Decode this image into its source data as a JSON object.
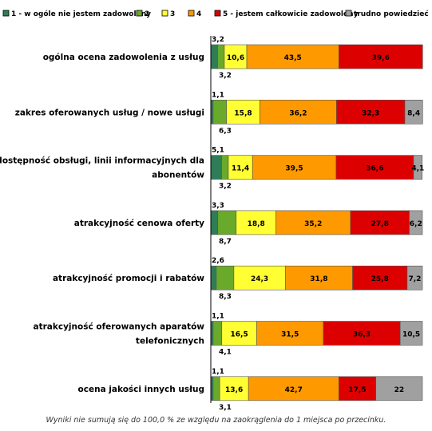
{
  "chart_data": {
    "type": "bar",
    "orientation": "horizontal",
    "stacked": true,
    "percent": true,
    "xlim": [
      0,
      100
    ],
    "legend_position": "top",
    "grid": false,
    "categories": [
      [
        "ogólna ocena zadowolenia z usług"
      ],
      [
        "zakres oferowanych usług / nowe usługi"
      ],
      [
        "dostępność obsługi, linii informacyjnych dla",
        "abonentów"
      ],
      [
        "atrakcyjność cenowa oferty"
      ],
      [
        "atrakcyjność promocji i rabatów"
      ],
      [
        "atrakcyjność oferowanych aparatów",
        "telefonicznych"
      ],
      [
        "ocena jakości innych usług"
      ]
    ],
    "series": [
      {
        "name": "1 - w ogóle nie jestem zadowolony",
        "color": "#2e7d57",
        "values": [
          3.2,
          1.1,
          5.1,
          3.3,
          2.6,
          1.1,
          1.1
        ]
      },
      {
        "name": "2",
        "color": "#6aaa2a",
        "values": [
          3.2,
          6.3,
          3.2,
          8.7,
          8.3,
          4.1,
          3.1
        ]
      },
      {
        "name": "3",
        "color": "#ffff33",
        "values": [
          10.6,
          15.8,
          11.4,
          18.8,
          24.3,
          16.5,
          13.6
        ]
      },
      {
        "name": "4",
        "color": "#ff9900",
        "values": [
          43.5,
          36.2,
          39.5,
          35.2,
          31.8,
          31.5,
          42.7
        ]
      },
      {
        "name": "5 - jestem całkowicie zadowolony",
        "color": "#dd0000",
        "values": [
          39.6,
          32.3,
          36.6,
          27.8,
          25.8,
          36.3,
          17.5
        ]
      },
      {
        "name": "trudno powiedzieć",
        "color": "#a0a0a0",
        "values": [
          0,
          8.4,
          4.1,
          6.2,
          7.2,
          10.5,
          22
        ]
      }
    ],
    "footnote": "Wyniki nie sumują się do 100,0 % ze względu na zaokrąglenia do 1 miejsca po przecinku."
  }
}
